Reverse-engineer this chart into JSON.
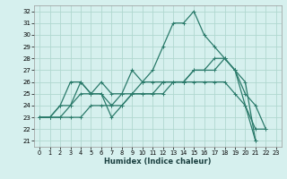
{
  "title": "",
  "xlabel": "Humidex (Indice chaleur)",
  "xlim": [
    -0.5,
    23.5
  ],
  "ylim": [
    20.5,
    32.5
  ],
  "xticks": [
    0,
    1,
    2,
    3,
    4,
    5,
    6,
    7,
    8,
    9,
    10,
    11,
    12,
    13,
    14,
    15,
    16,
    17,
    18,
    19,
    20,
    21,
    22,
    23
  ],
  "yticks": [
    21,
    22,
    23,
    24,
    25,
    26,
    27,
    28,
    29,
    30,
    31,
    32
  ],
  "bg_color": "#d6f0ee",
  "grid_color": "#b0d8d0",
  "line_color": "#2a7a6a",
  "series": [
    [
      23,
      23,
      24,
      26,
      26,
      25,
      26,
      25,
      25,
      27,
      26,
      27,
      29,
      31,
      31,
      32,
      30,
      29,
      28,
      27,
      24,
      22,
      22,
      null
    ],
    [
      23,
      23,
      24,
      24,
      26,
      25,
      25,
      24,
      24,
      25,
      26,
      26,
      26,
      26,
      26,
      27,
      27,
      27,
      28,
      27,
      25,
      24,
      22,
      null
    ],
    [
      23,
      23,
      23,
      24,
      25,
      25,
      25,
      23,
      24,
      25,
      25,
      25,
      25,
      26,
      26,
      26,
      26,
      26,
      26,
      25,
      24,
      21,
      null,
      null
    ],
    [
      23,
      23,
      23,
      23,
      23,
      24,
      24,
      24,
      25,
      25,
      25,
      25,
      26,
      26,
      26,
      27,
      27,
      28,
      28,
      27,
      26,
      21,
      null,
      null
    ]
  ]
}
